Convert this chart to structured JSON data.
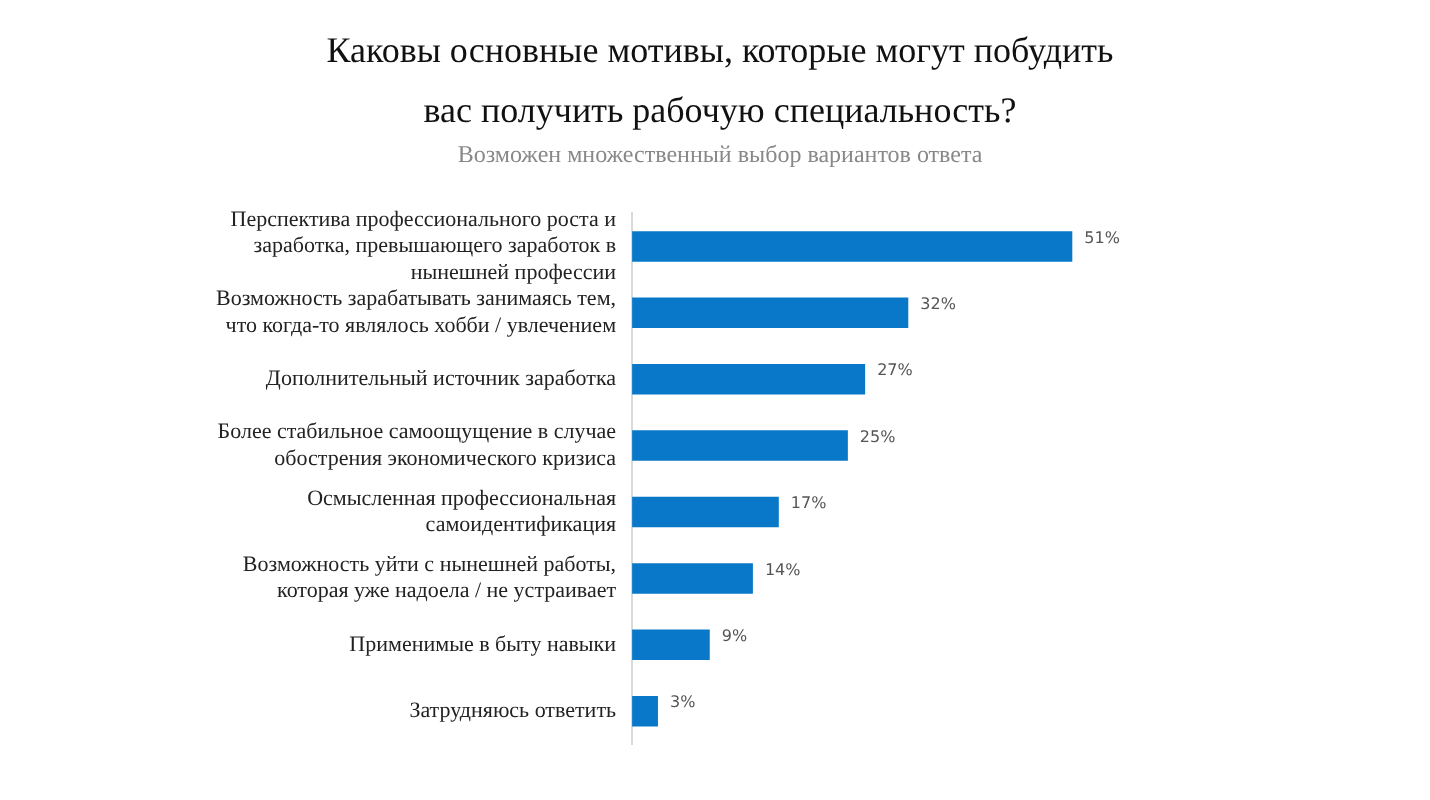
{
  "chart_data": {
    "type": "bar",
    "orientation": "horizontal",
    "title": "Каковы основные мотивы, которые могут побудить вас получить рабочую специальность?",
    "subtitle": "Возможен множественный выбор вариантов ответа",
    "categories": [
      "Перспектива профессионального роста и заработка, превышающего заработок в нынешней профессии",
      "Возможность зарабатывать занимаясь тем, что когда-то являлось хобби / увлечением",
      "Дополнительный источник заработка",
      "Более стабильное самоощущение в случае обострения экономического кризиса",
      "Осмысленная профессиональная самоидентификация",
      "Возможность уйти с нынешней работы, которая уже надоела / не устраивает",
      "Применимые в быту навыки",
      "Затрудняюсь ответить"
    ],
    "values": [
      51,
      32,
      27,
      25,
      17,
      14,
      9,
      3
    ],
    "value_labels": [
      "51%",
      "32%",
      "27%",
      "25%",
      "17%",
      "14%",
      "9%",
      "3%"
    ],
    "color": "#0a78c8",
    "tick_labels": "y",
    "grid": false,
    "legend": false
  }
}
